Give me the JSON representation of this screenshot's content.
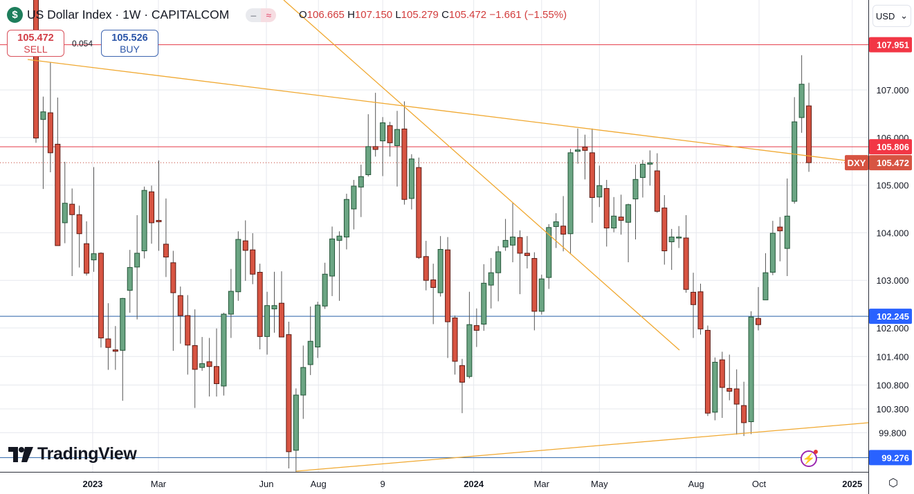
{
  "header": {
    "symbol_icon": "$",
    "title": "US Dollar Index · 1W · CAPITALCOM",
    "pill_a": "‒",
    "pill_b": "≈",
    "ohlc": {
      "o_label": "O",
      "o": "106.665",
      "h_label": "H",
      "h": "107.150",
      "l_label": "L",
      "l": "105.279",
      "c_label": "C",
      "c": "105.472",
      "change": "−1.661 (−1.55%)"
    }
  },
  "trade": {
    "sell_price": "105.472",
    "sell_label": "SELL",
    "spread": "0.054",
    "buy_price": "105.526",
    "buy_label": "BUY"
  },
  "currency": "USD",
  "logo_text": "TradingView",
  "icons": {
    "settings": "gear-icon",
    "alert": "lightning-icon",
    "currency": "chevron-down-icon"
  },
  "colors": {
    "up": "#6ba583",
    "up_border": "#225437",
    "down": "#d75442",
    "down_border": "#5b1a13",
    "trendline": "#f0a830",
    "red_level": "#e53946",
    "blue_level": "#2962a8"
  },
  "chart_data": {
    "type": "candlestick",
    "title": "US Dollar Index · 1W · CAPITALCOM",
    "interval": "1W",
    "ylim": [
      98.8,
      109.0
    ],
    "y_ticks": [
      "107.000",
      "106.000",
      "105.000",
      "104.000",
      "103.000",
      "102.000",
      "101.400",
      "100.800",
      "100.300",
      "99.800"
    ],
    "x_ticks": [
      {
        "label": "2023",
        "week_index": 7.85
      },
      {
        "label": "Mar",
        "week_index": 16.95
      },
      {
        "label": "Jun",
        "week_index": 31.9
      },
      {
        "label": "Aug",
        "week_index": 39.1
      },
      {
        "label": "9",
        "week_index": 48.0
      },
      {
        "label": "2024",
        "week_index": 60.6
      },
      {
        "label": "Mar",
        "week_index": 70.0
      },
      {
        "label": "May",
        "week_index": 78.0
      },
      {
        "label": "Aug",
        "week_index": 91.4
      },
      {
        "label": "Oct",
        "week_index": 100.1
      },
      {
        "label": "2025",
        "week_index": 113.0
      }
    ],
    "levels": [
      {
        "price": 107.951,
        "label": "107.951",
        "kind": "red"
      },
      {
        "price": 105.806,
        "label": "105.806",
        "kind": "red"
      },
      {
        "price": 102.245,
        "label": "102.245",
        "kind": "blue"
      },
      {
        "price": 99.276,
        "label": "99.276",
        "kind": "blue"
      }
    ],
    "last_price": {
      "price": 105.472,
      "label": "105.472",
      "ticker": "DXY"
    },
    "candles_ohlc": [
      [
        108.9,
        109.1,
        105.89,
        105.99
      ],
      [
        106.38,
        106.86,
        104.92,
        106.54
      ],
      [
        106.52,
        107.58,
        105.27,
        105.68
      ],
      [
        105.86,
        106.84,
        103.73,
        103.73
      ],
      [
        104.21,
        105.49,
        103.78,
        104.62
      ],
      [
        104.6,
        104.93,
        103.09,
        104.38
      ],
      [
        104.38,
        104.57,
        103.27,
        103.98
      ],
      [
        103.77,
        104.24,
        103.1,
        103.15
      ],
      [
        103.43,
        105.38,
        103.18,
        103.56
      ],
      [
        103.57,
        103.59,
        101.59,
        101.79
      ],
      [
        101.77,
        102.52,
        101.12,
        101.59
      ],
      [
        101.54,
        102.04,
        101.12,
        101.51
      ],
      [
        101.53,
        102.63,
        100.47,
        102.62
      ],
      [
        102.79,
        103.64,
        102.32,
        103.27
      ],
      [
        103.28,
        104.37,
        102.18,
        103.57
      ],
      [
        103.62,
        104.97,
        103.46,
        104.89
      ],
      [
        104.86,
        104.99,
        103.77,
        104.21
      ],
      [
        104.26,
        105.52,
        103.62,
        104.23
      ],
      [
        103.76,
        104.72,
        103.07,
        103.49
      ],
      [
        103.37,
        103.62,
        101.52,
        102.74
      ],
      [
        102.68,
        102.87,
        101.67,
        102.26
      ],
      [
        102.26,
        102.69,
        101.02,
        101.64
      ],
      [
        101.63,
        102.39,
        100.32,
        101.13
      ],
      [
        101.17,
        101.81,
        101.1,
        101.25
      ],
      [
        101.29,
        101.79,
        100.56,
        101.19
      ],
      [
        101.19,
        101.99,
        100.56,
        100.83
      ],
      [
        100.78,
        102.32,
        100.58,
        102.29
      ],
      [
        102.29,
        103.24,
        101.79,
        102.77
      ],
      [
        102.76,
        104.03,
        102.57,
        103.86
      ],
      [
        103.83,
        104.26,
        102.99,
        103.63
      ],
      [
        103.64,
        103.99,
        102.92,
        103.13
      ],
      [
        103.17,
        103.35,
        101.55,
        101.82
      ],
      [
        101.82,
        102.76,
        101.44,
        102.47
      ],
      [
        102.4,
        103.18,
        101.9,
        102.47
      ],
      [
        102.52,
        103.19,
        101.81,
        101.81
      ],
      [
        101.86,
        102.13,
        99.05,
        99.4
      ],
      [
        99.43,
        100.73,
        98.98,
        100.59
      ],
      [
        100.59,
        101.63,
        100.09,
        101.17
      ],
      [
        101.23,
        102.45,
        101.01,
        101.72
      ],
      [
        101.6,
        102.55,
        101.37,
        102.48
      ],
      [
        102.46,
        103.37,
        102.4,
        103.13
      ],
      [
        103.09,
        104.13,
        102.67,
        103.87
      ],
      [
        103.84,
        104.03,
        102.57,
        103.93
      ],
      [
        103.91,
        104.82,
        103.65,
        104.7
      ],
      [
        104.5,
        105.11,
        104.07,
        104.98
      ],
      [
        104.96,
        105.43,
        104.33,
        105.18
      ],
      [
        105.22,
        106.49,
        105.18,
        105.81
      ],
      [
        105.81,
        106.94,
        105.6,
        105.75
      ],
      [
        105.93,
        106.43,
        105.19,
        106.31
      ],
      [
        106.25,
        106.33,
        105.6,
        105.89
      ],
      [
        105.83,
        106.56,
        104.97,
        106.17
      ],
      [
        106.18,
        106.76,
        104.59,
        104.7
      ],
      [
        104.72,
        105.65,
        104.49,
        105.55
      ],
      [
        105.37,
        105.58,
        103.45,
        103.48
      ],
      [
        103.5,
        103.83,
        102.79,
        103.0
      ],
      [
        103.01,
        103.35,
        102.08,
        102.85
      ],
      [
        102.74,
        103.93,
        102.66,
        103.65
      ],
      [
        103.64,
        103.91,
        101.37,
        102.13
      ],
      [
        102.21,
        102.26,
        101.02,
        101.3
      ],
      [
        101.21,
        101.35,
        100.21,
        100.86
      ],
      [
        100.98,
        102.76,
        100.94,
        102.07
      ],
      [
        102.05,
        102.41,
        101.6,
        101.95
      ],
      [
        102.08,
        103.34,
        101.94,
        102.94
      ],
      [
        102.9,
        103.47,
        102.41,
        103.16
      ],
      [
        103.16,
        103.72,
        102.56,
        103.6
      ],
      [
        103.7,
        104.29,
        103.62,
        103.84
      ],
      [
        103.74,
        104.63,
        103.38,
        103.91
      ],
      [
        103.9,
        104.05,
        102.71,
        103.57
      ],
      [
        103.57,
        103.93,
        103.25,
        103.52
      ],
      [
        103.46,
        103.59,
        101.95,
        102.35
      ],
      [
        102.35,
        103.12,
        102.28,
        103.03
      ],
      [
        103.06,
        104.18,
        102.82,
        104.11
      ],
      [
        104.13,
        104.41,
        103.68,
        104.23
      ],
      [
        104.14,
        104.77,
        103.61,
        103.97
      ],
      [
        103.98,
        105.76,
        103.55,
        105.68
      ],
      [
        105.71,
        106.19,
        105.45,
        105.74
      ],
      [
        105.8,
        106.06,
        105.12,
        105.73
      ],
      [
        105.68,
        106.19,
        104.21,
        104.74
      ],
      [
        104.75,
        105.41,
        104.54,
        104.99
      ],
      [
        104.93,
        105.11,
        103.71,
        104.1
      ],
      [
        104.1,
        104.75,
        104.01,
        104.35
      ],
      [
        104.33,
        104.8,
        103.96,
        104.26
      ],
      [
        104.22,
        104.61,
        103.38,
        104.59
      ],
      [
        104.71,
        105.43,
        103.86,
        105.12
      ],
      [
        105.16,
        105.53,
        104.74,
        105.44
      ],
      [
        105.44,
        105.73,
        104.99,
        105.47
      ],
      [
        105.3,
        105.67,
        104.42,
        104.45
      ],
      [
        104.52,
        104.79,
        103.33,
        103.62
      ],
      [
        103.81,
        104.08,
        103.22,
        103.91
      ],
      [
        103.9,
        104.14,
        103.68,
        103.91
      ],
      [
        103.89,
        104.37,
        102.74,
        102.81
      ],
      [
        102.75,
        103.16,
        101.79,
        102.49
      ],
      [
        102.76,
        102.93,
        101.86,
        101.98
      ],
      [
        101.95,
        102.05,
        100.15,
        100.21
      ],
      [
        100.23,
        101.38,
        100.06,
        101.28
      ],
      [
        101.33,
        101.5,
        100.11,
        100.75
      ],
      [
        100.73,
        101.44,
        100.48,
        100.67
      ],
      [
        100.72,
        101.13,
        99.76,
        100.4
      ],
      [
        100.37,
        100.87,
        99.73,
        100.01
      ],
      [
        100.03,
        102.35,
        99.77,
        102.23
      ],
      [
        102.2,
        102.86,
        101.95,
        102.07
      ],
      [
        102.59,
        103.57,
        102.59,
        103.16
      ],
      [
        103.17,
        104.25,
        103.11,
        103.99
      ],
      [
        104.12,
        104.33,
        103.4,
        104.04
      ],
      [
        103.67,
        105.14,
        103.09,
        104.35
      ],
      [
        104.66,
        106.85,
        104.61,
        106.33
      ],
      [
        106.42,
        107.73,
        106.1,
        107.12
      ],
      [
        106.665,
        107.15,
        105.279,
        105.472
      ]
    ]
  }
}
